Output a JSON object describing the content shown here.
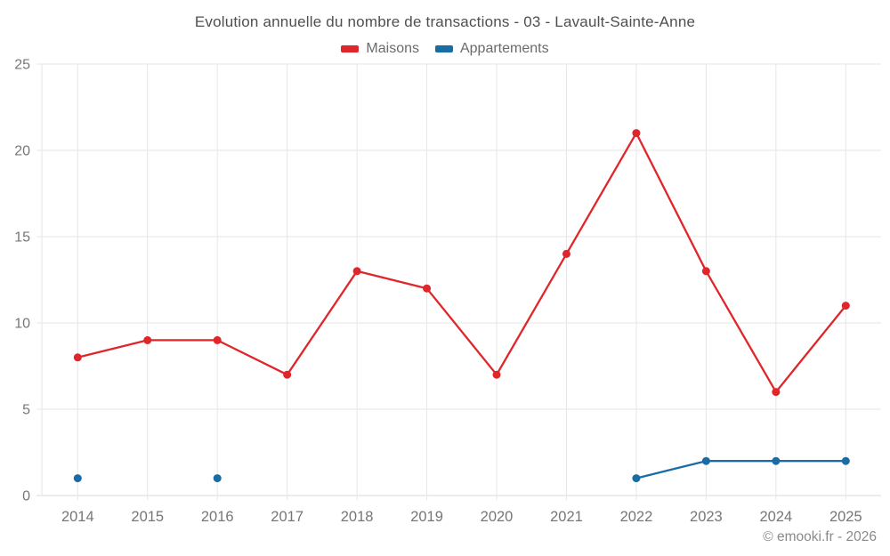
{
  "title": "Evolution annuelle du nombre de transactions - 03 - Lavault-Sainte-Anne",
  "copyright": "© emooki.fr - 2026",
  "chart_data": {
    "type": "line",
    "title": "Evolution annuelle du nombre de transactions - 03 - Lavault-Sainte-Anne",
    "x": [
      2014,
      2015,
      2016,
      2017,
      2018,
      2019,
      2020,
      2021,
      2022,
      2023,
      2024,
      2025
    ],
    "series": [
      {
        "name": "Maisons",
        "color": "#df262b",
        "values": [
          8,
          9,
          9,
          7,
          13,
          12,
          7,
          14,
          21,
          13,
          6,
          11
        ]
      },
      {
        "name": "Appartements",
        "color": "#1a6ca4",
        "values": [
          1,
          null,
          1,
          null,
          null,
          null,
          null,
          null,
          1,
          2,
          2,
          2
        ]
      }
    ],
    "ylim": [
      0,
      25
    ],
    "yticks": [
      0,
      5,
      10,
      15,
      20,
      25
    ],
    "grid": true,
    "legend_position": "top-center",
    "colors": {
      "grid": "#e6e6e6",
      "axis": "#d9d9d9",
      "tick_label": "#767676",
      "title": "#4f4f4f",
      "legend_text": "#6b6b6b",
      "copyright": "#8a8a8a"
    }
  }
}
